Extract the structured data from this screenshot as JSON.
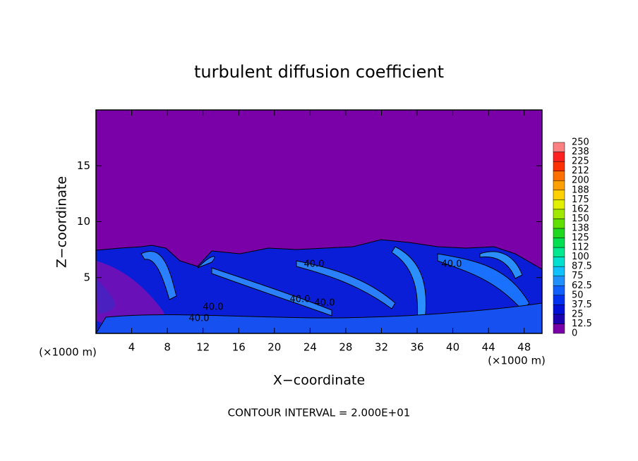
{
  "chart_data": {
    "type": "contour",
    "title": "turbulent diffusion coefficient",
    "x_label": "X−coordinate",
    "y_label": "Z−coordinate",
    "x_unit": "(×1000 m)",
    "x_unit_right": "(×1000 m)",
    "annotation": "CONTOUR INTERVAL = 2.000E+01",
    "xlim": [
      0,
      50
    ],
    "ylim": [
      0,
      20
    ],
    "xticks": [
      4,
      8,
      12,
      16,
      20,
      24,
      28,
      32,
      36,
      40,
      44,
      48
    ],
    "yticks": [
      5,
      10,
      15
    ],
    "contour_labels": [
      "40.0",
      "40.0",
      "40.0",
      "40.0",
      "40.0",
      "40.0"
    ],
    "colorbar": {
      "ticks": [
        0,
        12.5,
        25,
        37.5,
        50,
        62.5,
        75,
        87.5,
        100,
        112,
        125,
        138,
        150,
        162,
        175,
        188,
        200,
        212,
        225,
        238,
        250
      ],
      "colors": [
        "#7a00a8",
        "#1a00b0",
        "#0010d8",
        "#0030f0",
        "#1060ff",
        "#2090ff",
        "#10c0ff",
        "#00e0d0",
        "#00e890",
        "#00e050",
        "#20d820",
        "#60e000",
        "#a0e800",
        "#e0f000",
        "#ffd000",
        "#ffa000",
        "#ff7000",
        "#ff3000",
        "#ff2020",
        "#ff8080"
      ]
    }
  }
}
